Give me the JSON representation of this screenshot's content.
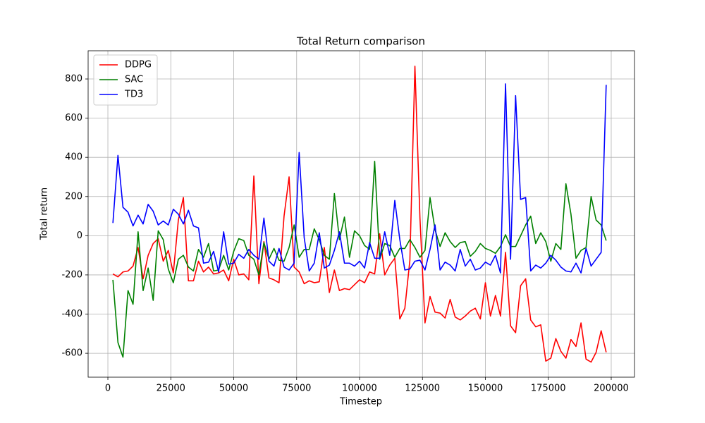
{
  "chart_data": {
    "type": "line",
    "title": "Total Return comparison",
    "x_label": "Timestep",
    "y_label": "Total return",
    "x": [
      2000,
      4000,
      6000,
      8000,
      10000,
      12000,
      14000,
      16000,
      18000,
      20000,
      22000,
      24000,
      26000,
      28000,
      30000,
      32000,
      34000,
      36000,
      38000,
      40000,
      42000,
      44000,
      46000,
      48000,
      50000,
      52000,
      54000,
      56000,
      58000,
      60000,
      62000,
      64000,
      66000,
      68000,
      70000,
      72000,
      74000,
      76000,
      78000,
      80000,
      82000,
      84000,
      86000,
      88000,
      90000,
      92000,
      94000,
      96000,
      98000,
      100000,
      102000,
      104000,
      106000,
      108000,
      110000,
      112000,
      114000,
      116000,
      118000,
      120000,
      122000,
      124000,
      126000,
      128000,
      130000,
      132000,
      134000,
      136000,
      138000,
      140000,
      142000,
      144000,
      146000,
      148000,
      150000,
      152000,
      154000,
      156000,
      158000,
      160000,
      162000,
      164000,
      166000,
      168000,
      170000,
      172000,
      174000,
      176000,
      178000,
      180000,
      182000,
      184000,
      186000,
      188000,
      190000,
      192000,
      194000,
      196000,
      198000
    ],
    "series": [
      {
        "name": "DDPG",
        "color": "#ff0000",
        "values": [
          -195,
          -210,
          -185,
          -180,
          -155,
          -60,
          -220,
          -100,
          -40,
          -15,
          -130,
          -75,
          -190,
          80,
          195,
          -230,
          -230,
          -130,
          -185,
          -160,
          -195,
          -190,
          -175,
          -230,
          -120,
          -200,
          -195,
          -225,
          305,
          -245,
          -30,
          -215,
          -225,
          -240,
          100,
          300,
          -160,
          -185,
          -245,
          -230,
          -240,
          -235,
          -60,
          -290,
          -175,
          -280,
          -270,
          -275,
          -250,
          -225,
          -240,
          -185,
          -195,
          10,
          -200,
          -150,
          -115,
          -425,
          -370,
          -125,
          865,
          90,
          -445,
          -310,
          -390,
          -395,
          -420,
          -325,
          -415,
          -430,
          -410,
          -385,
          -370,
          -425,
          -240,
          -410,
          -305,
          -410,
          -85,
          -460,
          -495,
          -255,
          -220,
          -430,
          -465,
          -455,
          -640,
          -625,
          -525,
          -590,
          -625,
          -530,
          -565,
          -445,
          -630,
          -645,
          -595,
          -485,
          -595
        ]
      },
      {
        "name": "SAC",
        "color": "#008000",
        "values": [
          -225,
          -545,
          -620,
          -280,
          -350,
          20,
          -280,
          -165,
          -330,
          25,
          -20,
          -170,
          -240,
          -120,
          -100,
          -160,
          -180,
          -70,
          -110,
          -40,
          -180,
          -175,
          -100,
          -175,
          -80,
          -15,
          -25,
          -100,
          -120,
          -200,
          -35,
          -120,
          -65,
          -125,
          -130,
          -60,
          55,
          -110,
          -70,
          -70,
          35,
          -20,
          -100,
          -120,
          215,
          -20,
          95,
          -110,
          25,
          0,
          -50,
          -70,
          380,
          -120,
          -40,
          -50,
          -110,
          -65,
          -65,
          -20,
          -60,
          -110,
          -75,
          195,
          30,
          -55,
          15,
          -30,
          -60,
          -35,
          -30,
          -105,
          -80,
          -40,
          -65,
          -75,
          -90,
          -55,
          5,
          -55,
          -55,
          0,
          55,
          100,
          -40,
          15,
          -30,
          -130,
          -40,
          -70,
          265,
          110,
          -115,
          -75,
          -60,
          200,
          80,
          55,
          -25
        ]
      },
      {
        "name": "TD3",
        "color": "#0000ff",
        "values": [
          65,
          410,
          145,
          120,
          50,
          105,
          60,
          160,
          125,
          55,
          75,
          55,
          135,
          110,
          60,
          130,
          50,
          40,
          -140,
          -135,
          -80,
          -185,
          20,
          -145,
          -140,
          -95,
          -115,
          -70,
          -100,
          -120,
          90,
          -130,
          -155,
          -65,
          -160,
          -175,
          -140,
          425,
          -10,
          -180,
          -140,
          15,
          -165,
          -150,
          -75,
          20,
          -140,
          -140,
          -155,
          -130,
          -165,
          -35,
          -115,
          -115,
          20,
          -100,
          180,
          -20,
          -175,
          -170,
          -130,
          -125,
          -175,
          -70,
          55,
          -175,
          -135,
          -150,
          -180,
          -70,
          -155,
          -120,
          -175,
          -165,
          -135,
          -150,
          -100,
          -190,
          775,
          -120,
          715,
          185,
          195,
          -180,
          -150,
          -165,
          -140,
          -100,
          -125,
          -160,
          -180,
          -185,
          -140,
          -190,
          -65,
          -155,
          -120,
          -85,
          770
        ]
      }
    ],
    "xlim": [
      -7850,
      209250
    ],
    "ylim": [
      -722,
      944
    ],
    "xticks": [
      0,
      25000,
      50000,
      75000,
      100000,
      125000,
      150000,
      175000,
      200000
    ],
    "yticks": [
      -600,
      -400,
      -200,
      0,
      200,
      400,
      600,
      800
    ],
    "grid": true,
    "legend": "upper left"
  }
}
